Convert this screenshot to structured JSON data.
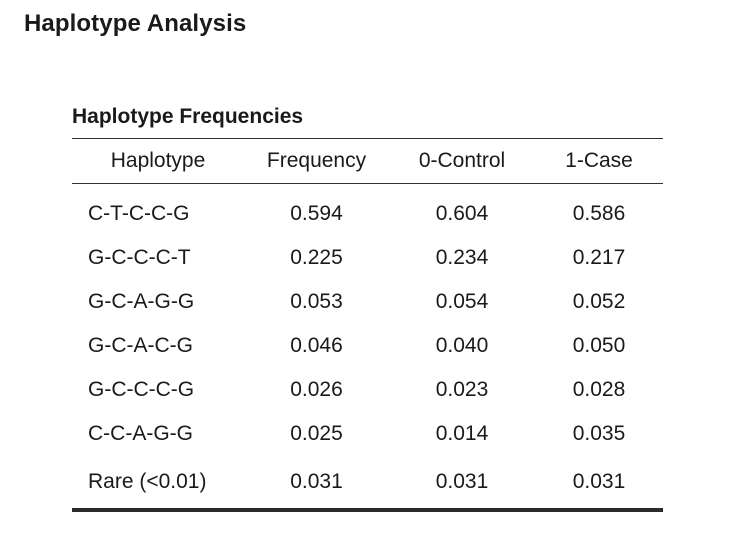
{
  "page": {
    "title": "Haplotype Analysis"
  },
  "table": {
    "title": "Haplotype Frequencies",
    "headers": [
      "Haplotype",
      "Frequency",
      "0-Control",
      "1-Case"
    ],
    "rows": [
      [
        "C-T-C-C-G",
        "0.594",
        "0.604",
        "0.586"
      ],
      [
        "G-C-C-C-T",
        "0.225",
        "0.234",
        "0.217"
      ],
      [
        "G-C-A-G-G",
        "0.053",
        "0.054",
        "0.052"
      ],
      [
        "G-C-A-C-G",
        "0.046",
        "0.040",
        "0.050"
      ],
      [
        "G-C-C-C-G",
        "0.026",
        "0.023",
        "0.028"
      ],
      [
        "C-C-A-G-G",
        "0.025",
        "0.014",
        "0.035"
      ],
      [
        "Rare (<0.01)",
        "0.031",
        "0.031",
        "0.031"
      ]
    ]
  }
}
